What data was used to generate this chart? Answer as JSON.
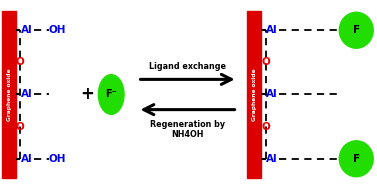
{
  "bg_color": "#ffffff",
  "red_bar_color": "#dd0000",
  "go_text_color": "#ffffff",
  "Al_color": "#0000ee",
  "O_color": "#ee0000",
  "F_bg_color": "#22dd00",
  "dashed_color": "#000000",
  "arrow_color": "#000000",
  "plus_color": "#000000",
  "text_ligand": "Ligand exchange",
  "text_regen": "Regeneration by\nNH4OH",
  "go_text": "Graphene oxide",
  "figsize": [
    3.77,
    1.89
  ],
  "dpi": 100,
  "xlim": [
    0,
    10
  ],
  "ylim": [
    0,
    5
  ]
}
